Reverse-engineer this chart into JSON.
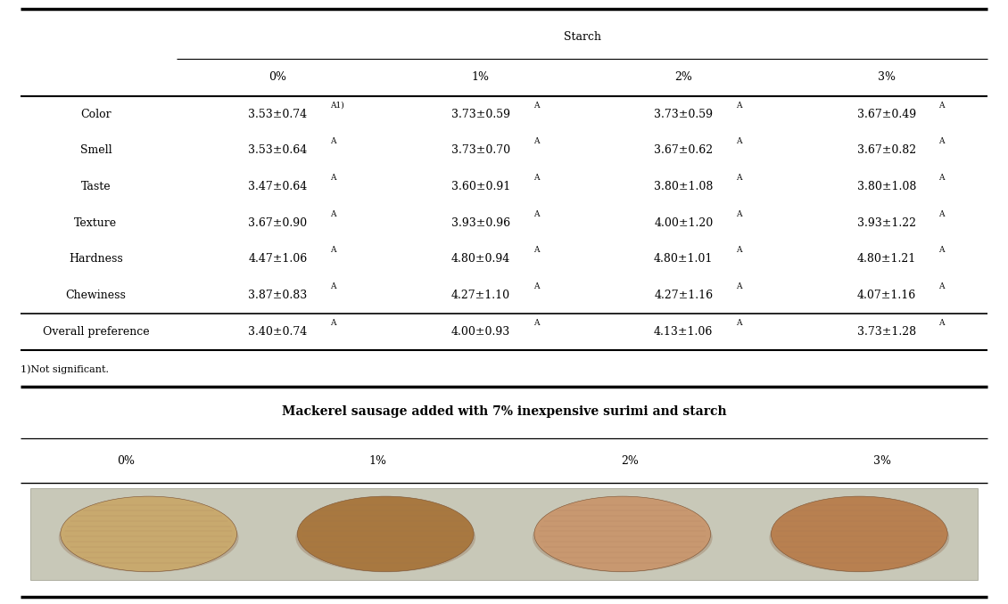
{
  "title_starch": "Starch",
  "col_headers": [
    "0%",
    "1%",
    "2%",
    "3%"
  ],
  "row_headers": [
    "Color",
    "Smell",
    "Taste",
    "Texture",
    "Hardness",
    "Chewiness",
    "Overall preference"
  ],
  "table_data": [
    [
      "3.53±0.74",
      "3.73±0.59",
      "3.73±0.59",
      "3.67±0.49"
    ],
    [
      "3.53±0.64",
      "3.73±0.70",
      "3.67±0.62",
      "3.67±0.82"
    ],
    [
      "3.47±0.64",
      "3.60±0.91",
      "3.80±1.08",
      "3.80±1.08"
    ],
    [
      "3.67±0.90",
      "3.93±0.96",
      "4.00±1.20",
      "3.93±1.22"
    ],
    [
      "4.47±1.06",
      "4.80±0.94",
      "4.80±1.01",
      "4.80±1.21"
    ],
    [
      "3.87±0.83",
      "4.27±1.10",
      "4.27±1.16",
      "4.07±1.16"
    ],
    [
      "3.40±0.74",
      "4.00±0.93",
      "4.13±1.06",
      "3.73±1.28"
    ]
  ],
  "superscripts": [
    [
      "A1)",
      "A",
      "A",
      "A"
    ],
    [
      "A",
      "A",
      "A",
      "A"
    ],
    [
      "A",
      "A",
      "A",
      "A"
    ],
    [
      "A",
      "A",
      "A",
      "A"
    ],
    [
      "A",
      "A",
      "A",
      "A"
    ],
    [
      "A",
      "A",
      "A",
      "A"
    ],
    [
      "A",
      "A",
      "A",
      "A"
    ]
  ],
  "footnote": "1)Not significant.",
  "image_title": "Mackerel sausage added with 7% inexpensive surimi and starch",
  "image_col_headers": [
    "0%",
    "1%",
    "2%",
    "3%"
  ],
  "bg_color": "#ffffff",
  "line_color": "#000000",
  "sausage_colors": [
    "#c8a96e",
    "#a87840",
    "#c89870",
    "#b88050"
  ],
  "photo_bg": "#c8c8b8"
}
